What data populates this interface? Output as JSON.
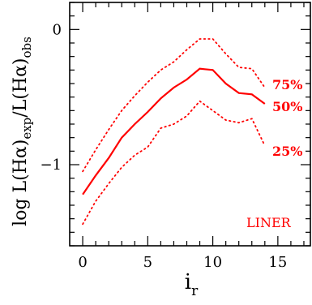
{
  "chart_data": {
    "type": "line",
    "xlabel_main": "i",
    "xlabel_sub": "r",
    "ylabel": {
      "prefix": "log L(Hα)",
      "sub1": "exp",
      "mid": "/L(Hα)",
      "sub2": "obs"
    },
    "xlim": [
      -1,
      17.5
    ],
    "ylim": [
      -1.6,
      0.2
    ],
    "x_ticks": [
      0,
      5,
      10,
      15
    ],
    "x_tick_labels": [
      "0",
      "5",
      "10",
      "15"
    ],
    "y_ticks": [
      0,
      -1
    ],
    "y_tick_labels": [
      "0",
      "−1"
    ],
    "annotation": "LINER",
    "series": [
      {
        "name": "75%",
        "style": "dotted",
        "color": "#ff0000",
        "x": [
          0,
          1,
          2,
          3,
          4,
          5,
          6,
          7,
          8,
          9,
          10,
          11,
          12,
          13,
          14
        ],
        "y": [
          -1.05,
          -0.89,
          -0.74,
          -0.6,
          -0.49,
          -0.39,
          -0.3,
          -0.24,
          -0.15,
          -0.07,
          -0.07,
          -0.18,
          -0.28,
          -0.29,
          -0.43
        ]
      },
      {
        "name": "50%",
        "style": "solid",
        "color": "#ff0000",
        "x": [
          0,
          1,
          2,
          3,
          4,
          5,
          6,
          7,
          8,
          9,
          10,
          11,
          12,
          13,
          14
        ],
        "y": [
          -1.22,
          -1.08,
          -0.95,
          -0.8,
          -0.7,
          -0.61,
          -0.51,
          -0.43,
          -0.37,
          -0.29,
          -0.3,
          -0.4,
          -0.47,
          -0.48,
          -0.55
        ]
      },
      {
        "name": "25%",
        "style": "dotted",
        "color": "#ff0000",
        "x": [
          0,
          1,
          2,
          3,
          4,
          5,
          6,
          7,
          8,
          9,
          10,
          11,
          12,
          13,
          14
        ],
        "y": [
          -1.44,
          -1.27,
          -1.14,
          -1.02,
          -0.93,
          -0.87,
          -0.73,
          -0.7,
          -0.64,
          -0.53,
          -0.6,
          -0.67,
          -0.69,
          -0.66,
          -0.86
        ]
      }
    ]
  }
}
